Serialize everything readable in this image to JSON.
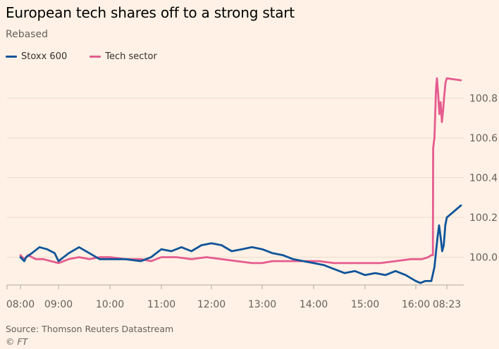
{
  "header": {
    "title": "European tech shares off to a strong start",
    "subtitle": "Rebased"
  },
  "footer": {
    "source": "Source: Thomson Reuters Datastream",
    "credit": "© FT"
  },
  "colors": {
    "background": "#fff1e5",
    "stoxx": "#0f5499",
    "tech": "#e55c8f",
    "grid": "#e9decf",
    "axis_text": "#66605c"
  },
  "chart_data": {
    "type": "line",
    "title": "European tech shares off to a strong start",
    "subtitle": "Rebased",
    "xlabel": "",
    "ylabel": "",
    "ylim": [
      99.86,
      100.94
    ],
    "y_ticks": [
      100.0,
      100.2,
      100.4,
      100.6,
      100.8
    ],
    "y_tick_labels": [
      "100.0",
      "100.2",
      "100.4",
      "100.6",
      "100.8"
    ],
    "y_axis_position": "right",
    "grid": true,
    "legend_position": "top-left",
    "x_ticks": [
      "08:00",
      "09:00",
      "10:00",
      "11:00",
      "12:00",
      "13:00",
      "14:00",
      "15:00",
      "16:00",
      "08:23"
    ],
    "series": [
      {
        "name": "Stoxx 600",
        "color": "#0f5499",
        "points": [
          [
            0,
            100.0
          ],
          [
            0.1,
            99.98
          ],
          [
            0.15,
            100.0
          ],
          [
            0.3,
            100.02
          ],
          [
            0.5,
            100.05
          ],
          [
            0.7,
            100.04
          ],
          [
            0.9,
            100.02
          ],
          [
            1.0,
            99.98
          ],
          [
            1.2,
            100.02
          ],
          [
            1.4,
            100.05
          ],
          [
            1.6,
            100.02
          ],
          [
            1.8,
            99.99
          ],
          [
            2.0,
            99.99
          ],
          [
            2.3,
            99.99
          ],
          [
            2.6,
            99.98
          ],
          [
            2.8,
            100.0
          ],
          [
            3.0,
            100.04
          ],
          [
            3.2,
            100.03
          ],
          [
            3.4,
            100.05
          ],
          [
            3.6,
            100.03
          ],
          [
            3.8,
            100.06
          ],
          [
            4.0,
            100.07
          ],
          [
            4.2,
            100.06
          ],
          [
            4.4,
            100.03
          ],
          [
            4.6,
            100.04
          ],
          [
            4.8,
            100.05
          ],
          [
            5.0,
            100.04
          ],
          [
            5.2,
            100.02
          ],
          [
            5.4,
            100.01
          ],
          [
            5.6,
            99.99
          ],
          [
            5.8,
            99.98
          ],
          [
            6.0,
            99.97
          ],
          [
            6.2,
            99.96
          ],
          [
            6.4,
            99.94
          ],
          [
            6.6,
            99.92
          ],
          [
            6.8,
            99.93
          ],
          [
            7.0,
            99.91
          ],
          [
            7.2,
            99.92
          ],
          [
            7.4,
            99.91
          ],
          [
            7.6,
            99.93
          ],
          [
            7.8,
            99.91
          ],
          [
            8.0,
            99.88
          ],
          [
            8.15,
            99.87
          ],
          [
            8.3,
            99.88
          ],
          [
            8.5,
            99.88
          ],
          [
            8.6,
            99.95
          ],
          [
            8.7,
            100.1
          ],
          [
            8.75,
            100.16
          ],
          [
            8.8,
            100.1
          ],
          [
            8.85,
            100.03
          ],
          [
            8.9,
            100.06
          ],
          [
            8.95,
            100.16
          ],
          [
            9.0,
            100.2
          ],
          [
            9.05,
            100.26
          ]
        ]
      },
      {
        "name": "Tech sector",
        "color": "#e55c8f",
        "points": [
          [
            0,
            100.01
          ],
          [
            0.1,
            99.99
          ],
          [
            0.2,
            100.01
          ],
          [
            0.4,
            99.99
          ],
          [
            0.6,
            99.99
          ],
          [
            0.8,
            99.98
          ],
          [
            1.0,
            99.97
          ],
          [
            1.2,
            99.99
          ],
          [
            1.4,
            100.0
          ],
          [
            1.6,
            99.99
          ],
          [
            1.8,
            100.0
          ],
          [
            2.0,
            100.0
          ],
          [
            2.3,
            99.99
          ],
          [
            2.6,
            99.99
          ],
          [
            2.8,
            99.98
          ],
          [
            3.0,
            100.0
          ],
          [
            3.3,
            100.0
          ],
          [
            3.6,
            99.99
          ],
          [
            3.9,
            100.0
          ],
          [
            4.2,
            99.99
          ],
          [
            4.5,
            99.98
          ],
          [
            4.8,
            99.97
          ],
          [
            5.0,
            99.97
          ],
          [
            5.2,
            99.98
          ],
          [
            5.5,
            99.98
          ],
          [
            5.8,
            99.98
          ],
          [
            6.1,
            99.98
          ],
          [
            6.4,
            99.97
          ],
          [
            6.7,
            99.97
          ],
          [
            7.0,
            99.97
          ],
          [
            7.3,
            99.97
          ],
          [
            7.6,
            99.98
          ],
          [
            7.9,
            99.99
          ],
          [
            8.2,
            99.99
          ],
          [
            8.4,
            100.0
          ],
          [
            8.5,
            100.01
          ],
          [
            8.55,
            100.01
          ],
          [
            8.56,
            100.55
          ],
          [
            8.6,
            100.6
          ],
          [
            8.65,
            100.84
          ],
          [
            8.68,
            100.9
          ],
          [
            8.72,
            100.82
          ],
          [
            8.76,
            100.72
          ],
          [
            8.8,
            100.78
          ],
          [
            8.84,
            100.68
          ],
          [
            8.88,
            100.74
          ],
          [
            8.92,
            100.82
          ],
          [
            8.96,
            100.88
          ],
          [
            9.0,
            100.9
          ],
          [
            9.05,
            100.89
          ]
        ]
      }
    ]
  }
}
